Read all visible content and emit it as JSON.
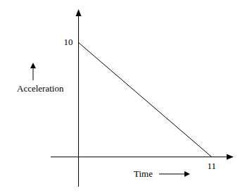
{
  "chart_data": {
    "type": "line",
    "x": [
      0,
      11
    ],
    "values": [
      10,
      0
    ],
    "color": "#000000",
    "xlabel": "Time",
    "ylabel": "Acceleration",
    "xlim": [
      -2.3,
      12.7
    ],
    "ylim": [
      -2.6,
      12.8
    ],
    "xticks": [
      11
    ],
    "yticks": [
      10
    ],
    "grid": false
  }
}
